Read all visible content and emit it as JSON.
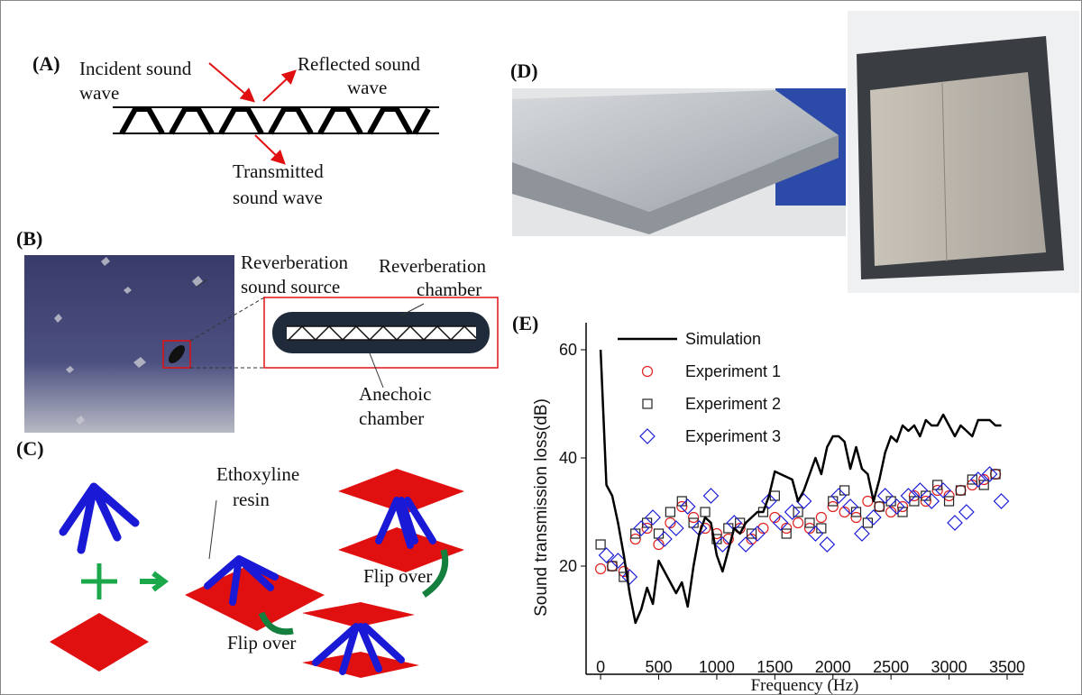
{
  "panel_a": {
    "label": "(A)",
    "incident": [
      "Incident sound",
      "wave"
    ],
    "reflected": [
      "Reflected sound",
      "wave"
    ],
    "transmitted": [
      "Transmitted",
      "sound wave"
    ]
  },
  "panel_b": {
    "label": "(B)",
    "source": [
      "Reverberation",
      "sound source"
    ],
    "reverb": [
      "Reverberation",
      "chamber"
    ],
    "anechoic": [
      "Anechoic",
      "chamber"
    ]
  },
  "panel_c": {
    "label": "(C)",
    "resin": [
      "Ethoxyline",
      "resin"
    ],
    "flip_right": "Flip over",
    "flip_bottom": "Flip over"
  },
  "panel_d": {
    "label": "(D)"
  },
  "panel_e": {
    "label": "(E)"
  },
  "chart_data": {
    "type": "line",
    "xlabel": "Frequency (Hz)",
    "ylabel": "Sound transmission loss(dB)",
    "xlim": [
      -125,
      3640
    ],
    "ylim": [
      0,
      65
    ],
    "xticks": [
      0,
      500,
      1000,
      1500,
      2000,
      2500,
      3000,
      3500
    ],
    "yticks": [
      20,
      40,
      60
    ],
    "legend": "upper left",
    "series": [
      {
        "name": "Simulation",
        "color": "#000000",
        "marker": "line",
        "x": [
          0,
          50,
          100,
          150,
          200,
          250,
          300,
          350,
          400,
          450,
          500,
          550,
          600,
          650,
          700,
          750,
          800,
          850,
          900,
          950,
          1000,
          1050,
          1100,
          1150,
          1200,
          1250,
          1300,
          1350,
          1400,
          1450,
          1500,
          1550,
          1600,
          1650,
          1700,
          1750,
          1800,
          1850,
          1900,
          1950,
          2000,
          2050,
          2100,
          2150,
          2200,
          2250,
          2300,
          2350,
          2400,
          2450,
          2500,
          2550,
          2600,
          2650,
          2700,
          2750,
          2800,
          2850,
          2900,
          2950,
          3000,
          3050,
          3100,
          3150,
          3200,
          3250,
          3300,
          3350,
          3400,
          3450
        ],
        "values": [
          60,
          35,
          33,
          28,
          22,
          15,
          9.5,
          12,
          16,
          13,
          21,
          19,
          17,
          15,
          17,
          12.5,
          20,
          26,
          29,
          28,
          22,
          19,
          23,
          27,
          26,
          28,
          29,
          30,
          30,
          33,
          37.5,
          37,
          36.5,
          36,
          32,
          34,
          37,
          40,
          37,
          42,
          44,
          44,
          43,
          38,
          42,
          38,
          37,
          32,
          36,
          41,
          44,
          43,
          46,
          45,
          46,
          44,
          47,
          46,
          46,
          48,
          46,
          44,
          46,
          45,
          44,
          47,
          47,
          47,
          46,
          46
        ]
      },
      {
        "name": "Experiment 1",
        "color": "#e02020",
        "marker": "circle",
        "x": [
          0,
          100,
          200,
          300,
          400,
          500,
          600,
          700,
          800,
          900,
          1000,
          1100,
          1200,
          1300,
          1400,
          1500,
          1600,
          1700,
          1800,
          1900,
          2000,
          2100,
          2200,
          2300,
          2400,
          2500,
          2600,
          2700,
          2800,
          2900,
          3000,
          3100,
          3200,
          3300,
          3400
        ],
        "values": [
          19.5,
          20,
          19,
          25,
          27,
          24,
          28,
          31,
          29,
          27,
          26,
          25,
          27,
          25,
          27,
          29,
          27,
          28,
          27,
          29,
          31,
          30,
          29,
          32,
          31,
          30,
          31,
          33,
          32,
          34,
          33,
          34,
          35,
          36,
          37
        ]
      },
      {
        "name": "Experiment 2",
        "color": "#222222",
        "marker": "square",
        "x": [
          0,
          100,
          200,
          300,
          400,
          500,
          600,
          700,
          800,
          900,
          1000,
          1100,
          1200,
          1300,
          1400,
          1500,
          1600,
          1700,
          1800,
          1900,
          2000,
          2100,
          2200,
          2300,
          2400,
          2500,
          2600,
          2700,
          2800,
          2900,
          3000,
          3100,
          3200,
          3300,
          3400
        ],
        "values": [
          24,
          20,
          18,
          26,
          28,
          26,
          30,
          32,
          28,
          30,
          25,
          27,
          28,
          26,
          30,
          33,
          26,
          30,
          28,
          27,
          32,
          34,
          30,
          28,
          31,
          32,
          30,
          32,
          33,
          35,
          32,
          34,
          36,
          35,
          37
        ]
      },
      {
        "name": "Experiment 3",
        "color": "#1a1ad6",
        "marker": "diamond",
        "x": [
          50,
          150,
          250,
          350,
          450,
          550,
          650,
          750,
          850,
          950,
          1050,
          1150,
          1250,
          1350,
          1450,
          1550,
          1650,
          1750,
          1850,
          1950,
          2050,
          2150,
          2250,
          2350,
          2450,
          2550,
          2650,
          2750,
          2850,
          2950,
          3050,
          3150,
          3250,
          3350,
          3450
        ],
        "values": [
          22,
          21,
          18,
          27,
          29,
          25,
          27,
          31,
          27,
          33,
          24,
          28,
          24,
          26,
          32,
          28,
          30,
          32,
          26,
          24,
          33,
          31,
          26,
          29,
          33,
          31,
          33,
          34,
          32,
          34,
          28,
          30,
          36,
          37,
          32
        ]
      }
    ]
  }
}
